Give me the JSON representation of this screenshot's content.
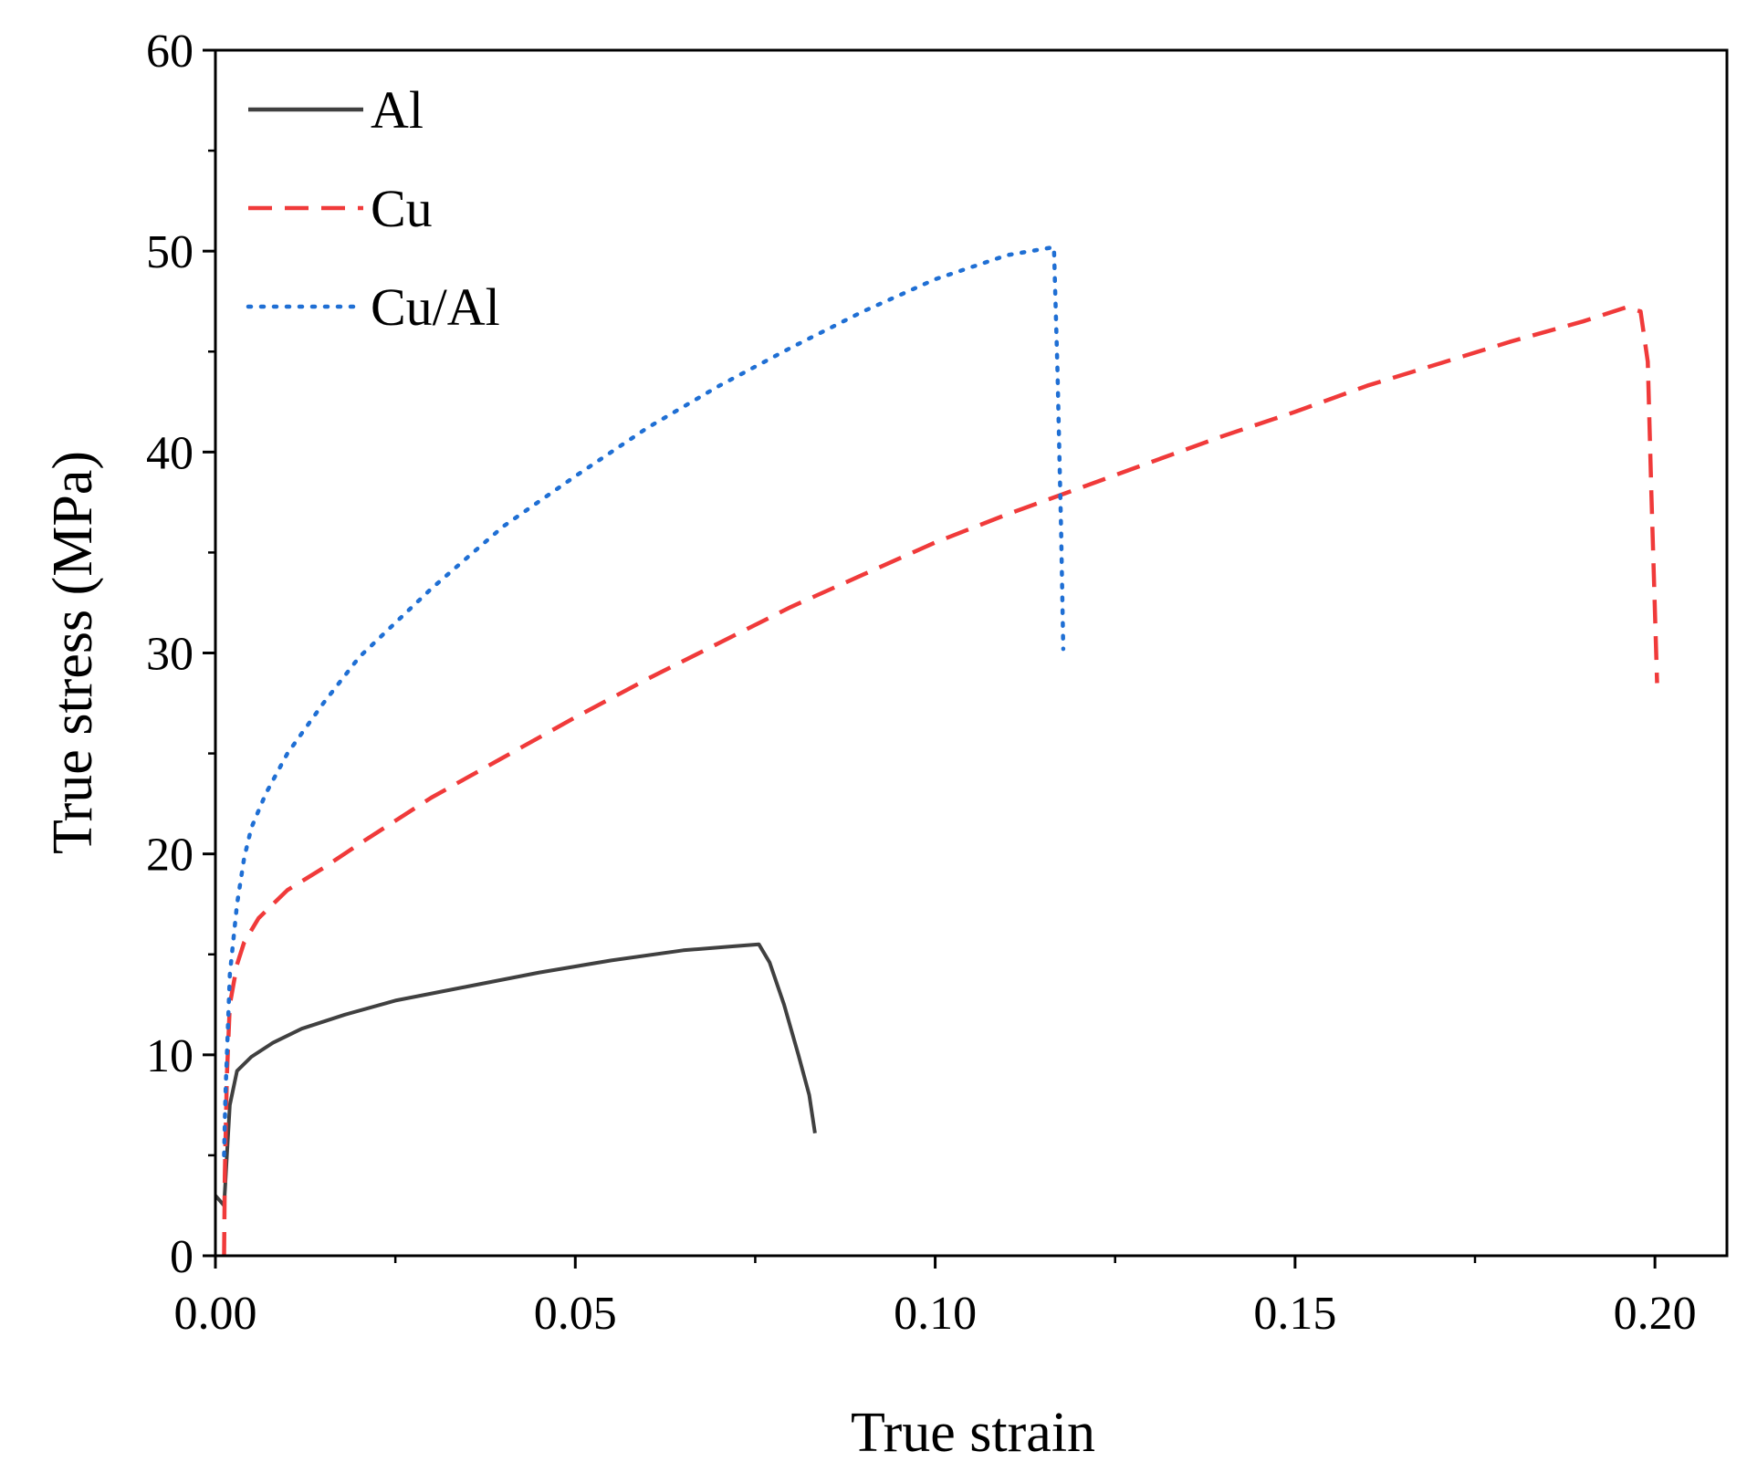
{
  "chart_data": {
    "type": "line",
    "title": "",
    "xlabel": "True strain",
    "ylabel": "True stress (MPa)",
    "xlim": [
      0,
      0.21
    ],
    "ylim": [
      0,
      60
    ],
    "x_ticks": [
      0.0,
      0.05,
      0.1,
      0.15,
      0.2
    ],
    "x_tick_labels": [
      "0.00",
      "0.05",
      "0.10",
      "0.15",
      "0.20"
    ],
    "x_minor_ticks": [
      0.025,
      0.075,
      0.125,
      0.175
    ],
    "y_ticks": [
      0,
      10,
      20,
      30,
      40,
      50,
      60
    ],
    "y_tick_labels": [
      "0",
      "10",
      "20",
      "30",
      "40",
      "50",
      "60"
    ],
    "y_minor_ticks": [
      5,
      15,
      25,
      35,
      45,
      55
    ],
    "grid": false,
    "legend_position": "top-left",
    "series": [
      {
        "name": "Al",
        "color": "#404040",
        "dash": "solid",
        "x": [
          0.0,
          0.0012,
          0.0016,
          0.002,
          0.003,
          0.005,
          0.008,
          0.012,
          0.018,
          0.025,
          0.035,
          0.045,
          0.055,
          0.065,
          0.072,
          0.0755,
          0.077,
          0.079,
          0.081,
          0.0825,
          0.0833
        ],
        "y": [
          3.0,
          2.5,
          5.0,
          7.5,
          9.2,
          9.9,
          10.6,
          11.3,
          12.0,
          12.7,
          13.4,
          14.1,
          14.7,
          15.2,
          15.4,
          15.5,
          14.6,
          12.5,
          10.0,
          8.0,
          6.1
        ]
      },
      {
        "name": "Cu",
        "color": "#f03a3a",
        "dash": "dashed",
        "x": [
          0.0012,
          0.0013,
          0.0016,
          0.002,
          0.003,
          0.004,
          0.006,
          0.01,
          0.015,
          0.02,
          0.03,
          0.04,
          0.05,
          0.06,
          0.07,
          0.08,
          0.09,
          0.1,
          0.11,
          0.12,
          0.13,
          0.14,
          0.15,
          0.16,
          0.17,
          0.18,
          0.19,
          0.196,
          0.198,
          0.199,
          0.1995,
          0.2003
        ],
        "y": [
          0.0,
          4.0,
          9.0,
          12.5,
          14.5,
          15.6,
          16.8,
          18.2,
          19.3,
          20.5,
          22.8,
          24.8,
          26.8,
          28.7,
          30.5,
          32.3,
          33.9,
          35.5,
          36.9,
          38.2,
          39.5,
          40.8,
          42.0,
          43.3,
          44.4,
          45.5,
          46.5,
          47.2,
          47.0,
          44.5,
          38.0,
          28.5
        ]
      },
      {
        "name": "Cu/Al",
        "color": "#1f6fd4",
        "dash": "dotted",
        "x": [
          0.0012,
          0.0014,
          0.0017,
          0.002,
          0.003,
          0.004,
          0.005,
          0.007,
          0.01,
          0.015,
          0.02,
          0.03,
          0.04,
          0.05,
          0.06,
          0.07,
          0.08,
          0.09,
          0.1,
          0.11,
          0.1165,
          0.117,
          0.1175,
          0.1178
        ],
        "y": [
          5.0,
          8.0,
          11.0,
          14.0,
          17.5,
          19.8,
          21.3,
          23.0,
          25.0,
          27.5,
          29.8,
          33.2,
          36.3,
          38.8,
          41.2,
          43.3,
          45.2,
          47.0,
          48.6,
          49.8,
          50.2,
          44.0,
          36.0,
          30.2
        ]
      }
    ]
  }
}
